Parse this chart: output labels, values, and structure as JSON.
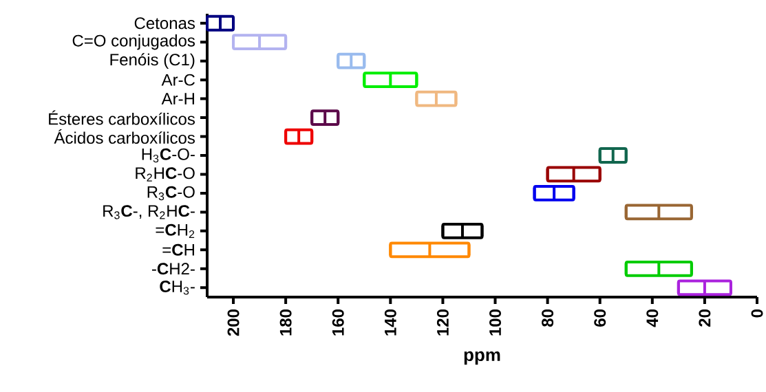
{
  "chart_data": {
    "type": "box",
    "orientation": "horizontal",
    "xlabel": "ppm",
    "categories": [
      "Cetonas",
      "C=O conjugados",
      "Fenóis (C1)",
      "Ar-C",
      "Ar-H",
      "Ésteres carboxílicos",
      "Ácidos carboxílicos",
      "H$_{3}$**C**-O-",
      "R$_{2}$H**C**-O",
      "R$_{3}$**C**-O",
      "R$_{3}$**C**-, R$_{2}$H**C**-",
      "=**C**H$_{2}$",
      "=**C**H",
      "-**C**H2-",
      "**C**H$_{3}$-"
    ],
    "boxes": [
      {
        "low": 200,
        "q1": 200,
        "median": 205,
        "q3": 210,
        "high": 210
      },
      {
        "low": 180,
        "q1": 180,
        "median": 190,
        "q3": 200,
        "high": 200
      },
      {
        "low": 150,
        "q1": 150,
        "median": 155,
        "q3": 160,
        "high": 160
      },
      {
        "low": 130,
        "q1": 130,
        "median": 140,
        "q3": 150,
        "high": 150
      },
      {
        "low": 115,
        "q1": 115,
        "median": 122.5,
        "q3": 130,
        "high": 130
      },
      {
        "low": 160,
        "q1": 160,
        "median": 165,
        "q3": 170,
        "high": 170
      },
      {
        "low": 170,
        "q1": 170,
        "median": 175,
        "q3": 180,
        "high": 180
      },
      {
        "low": 50,
        "q1": 50,
        "median": 55,
        "q3": 60,
        "high": 60
      },
      {
        "low": 60,
        "q1": 60,
        "median": 70,
        "q3": 80,
        "high": 80
      },
      {
        "low": 70,
        "q1": 70,
        "median": 77.5,
        "q3": 85,
        "high": 85
      },
      {
        "low": 25,
        "q1": 25,
        "median": 37.5,
        "q3": 50,
        "high": 50
      },
      {
        "low": 105,
        "q1": 105,
        "median": 112.5,
        "q3": 120,
        "high": 120
      },
      {
        "low": 110,
        "q1": 110,
        "median": 125,
        "q3": 140,
        "high": 140
      },
      {
        "low": 25,
        "q1": 25,
        "median": 37.5,
        "q3": 50,
        "high": 50
      },
      {
        "low": 10,
        "q1": 10,
        "median": 20,
        "q3": 30,
        "high": 30
      }
    ],
    "colors": [
      "#000080",
      "#b3b3f0",
      "#99bbee",
      "#00ee00",
      "#f0b880",
      "#5c0a4a",
      "#ee0000",
      "#11664e",
      "#990000",
      "#0000ee",
      "#996633",
      "#000000",
      "#ff8800",
      "#00cc00",
      "#aa22dd"
    ],
    "xlim": [
      210,
      0
    ],
    "xticks": [
      200,
      180,
      160,
      140,
      120,
      100,
      80,
      60,
      40,
      20,
      0
    ]
  }
}
